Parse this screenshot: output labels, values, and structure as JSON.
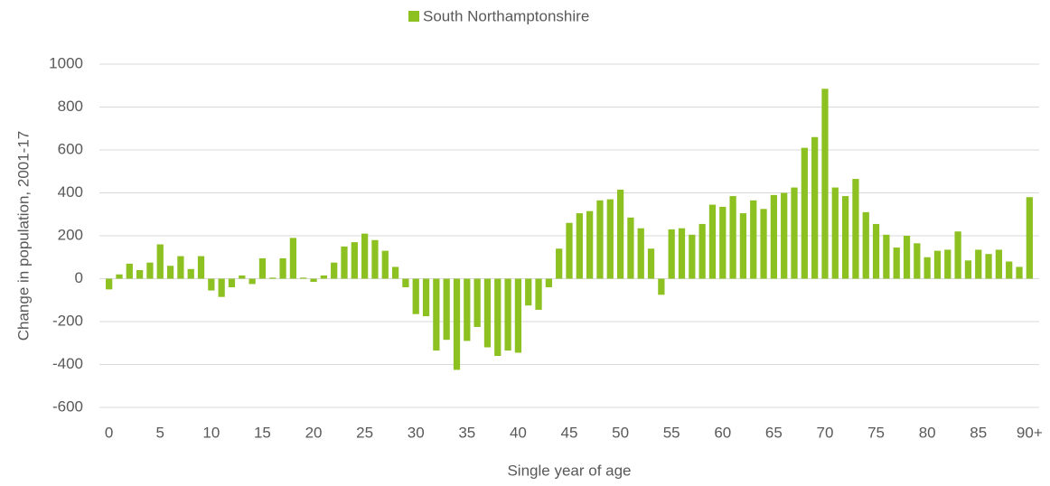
{
  "chart_data": {
    "type": "bar",
    "legend": "top",
    "series": [
      {
        "name": "South Northamptonshire",
        "color": "#8cc121",
        "values": [
          -50,
          20,
          70,
          40,
          75,
          160,
          60,
          105,
          45,
          105,
          -55,
          -85,
          -40,
          15,
          -25,
          95,
          5,
          95,
          190,
          5,
          -15,
          15,
          75,
          150,
          170,
          210,
          180,
          130,
          55,
          -40,
          -165,
          -175,
          -335,
          -285,
          -425,
          -290,
          -225,
          -320,
          -360,
          -335,
          -345,
          -125,
          -145,
          -40,
          140,
          260,
          305,
          315,
          365,
          370,
          415,
          285,
          235,
          140,
          -75,
          230,
          235,
          205,
          255,
          345,
          335,
          385,
          305,
          365,
          325,
          390,
          400,
          425,
          610,
          660,
          885,
          425,
          385,
          465,
          310,
          255,
          205,
          145,
          200,
          165,
          100,
          130,
          135,
          220,
          85,
          135,
          115,
          135,
          80,
          55,
          380
        ]
      }
    ],
    "categories": [
      "0",
      null,
      null,
      null,
      null,
      "5",
      null,
      null,
      null,
      null,
      "10",
      null,
      null,
      null,
      null,
      "15",
      null,
      null,
      null,
      null,
      "20",
      null,
      null,
      null,
      null,
      "25",
      null,
      null,
      null,
      null,
      "30",
      null,
      null,
      null,
      null,
      "35",
      null,
      null,
      null,
      null,
      "40",
      null,
      null,
      null,
      null,
      "45",
      null,
      null,
      null,
      null,
      "50",
      null,
      null,
      null,
      null,
      "55",
      null,
      null,
      null,
      null,
      "60",
      null,
      null,
      null,
      null,
      "65",
      null,
      null,
      null,
      null,
      "70",
      null,
      null,
      null,
      null,
      "75",
      null,
      null,
      null,
      null,
      "80",
      null,
      null,
      null,
      null,
      "85",
      null,
      null,
      null,
      null,
      "90+"
    ],
    "ylim": [
      -600,
      1000
    ],
    "yticks": [
      -600,
      -400,
      -200,
      0,
      200,
      400,
      600,
      800,
      1000
    ],
    "grid": true,
    "ylabel": "Change in population, 2001-17",
    "xlabel": "Single year of age"
  }
}
